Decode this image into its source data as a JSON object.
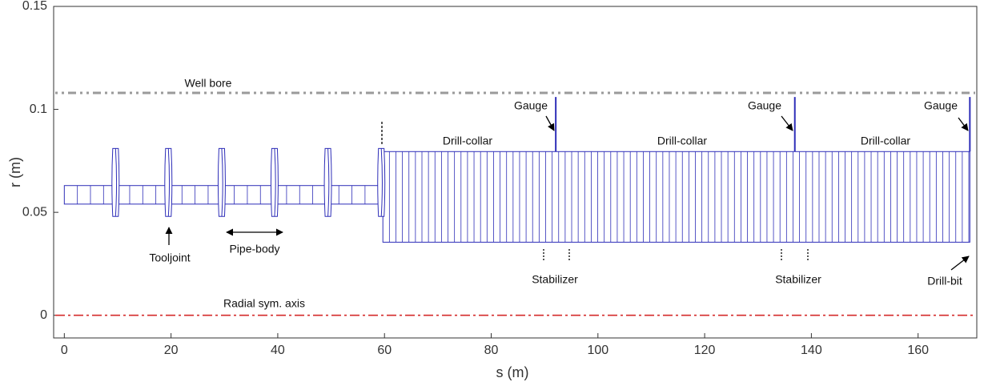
{
  "chart_data": {
    "type": "drillstring",
    "xlabel": "s (m)",
    "ylabel": "r (m)",
    "xlim": [
      -2,
      171
    ],
    "ylim": [
      -0.011,
      0.15
    ],
    "xticks": [
      0,
      20,
      40,
      60,
      80,
      100,
      120,
      140,
      160
    ],
    "yticks": [
      0,
      0.05,
      0.1,
      0.15
    ],
    "color": "#2e2eb8",
    "wellbore": {
      "name": "Well bore",
      "r": 0.108,
      "color": "#9a9a9a"
    },
    "sym_axis": {
      "name": "Radial sym. axis",
      "r": 0,
      "color": "#d42a2a"
    },
    "pipe": {
      "name": "Pipe-body",
      "s": [
        0,
        59
      ],
      "r": [
        0.054,
        0.063
      ],
      "element_length": 2.45
    },
    "tooljoints": {
      "name": "Tooljoint",
      "s": [
        9.6,
        19.5,
        29.5,
        39.4,
        49.4,
        59.4
      ],
      "r": [
        0.048,
        0.081
      ]
    },
    "collar": {
      "labels": [
        "Drill-collar",
        "Drill-collar",
        "Drill-collar"
      ],
      "s": [
        59.7,
        169.7
      ],
      "r": [
        0.0355,
        0.0795
      ],
      "element_length": 1.22
    },
    "gauges": {
      "labels": [
        "Gauge",
        "Gauge",
        "Gauge"
      ],
      "s": [
        92.1,
        136.9,
        169.7
      ],
      "r": 0.106
    },
    "stabilizer_labels": [
      "Stabilizer",
      "Stabilizer"
    ],
    "bit_label": "Drill-bit"
  }
}
